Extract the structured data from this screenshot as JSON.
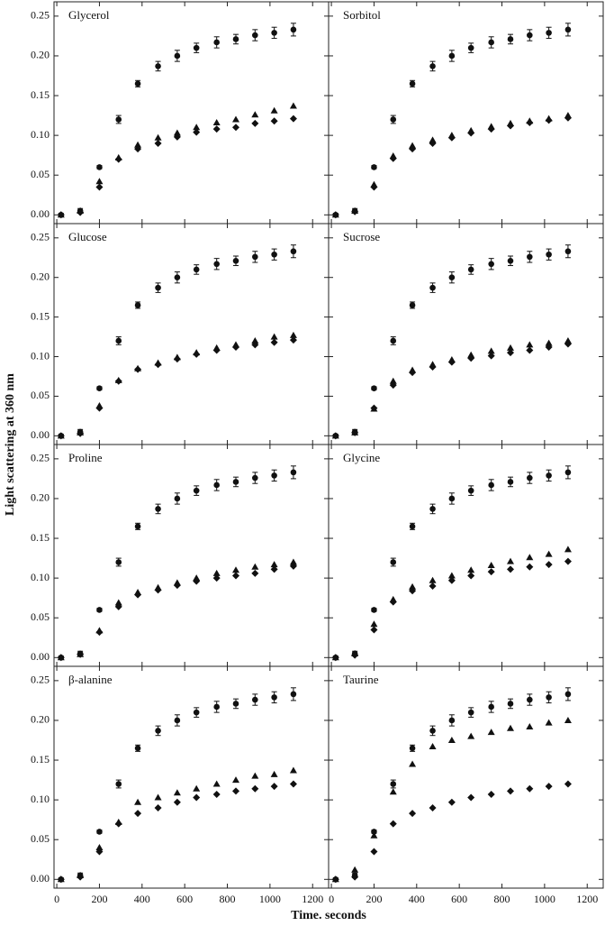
{
  "ylabel": "Light scattering at 360 nm",
  "xlabel": "Time. seconds",
  "chart_data": [
    {
      "type": "scatter",
      "title": "Glycerol",
      "ytick_labels": true,
      "xtick_labels": false,
      "x": [
        20,
        110,
        200,
        290,
        380,
        475,
        565,
        655,
        750,
        840,
        930,
        1020,
        1110
      ],
      "series": [
        {
          "marker": "circle",
          "color": "#111111",
          "values": [
            0,
            0.005,
            0.06,
            0.12,
            0.165,
            0.187,
            0.2,
            0.21,
            0.217,
            0.221,
            0.226,
            0.229,
            0.233
          ],
          "errors": [
            0.002,
            0.003,
            0.002,
            0.005,
            0.004,
            0.006,
            0.007,
            0.006,
            0.007,
            0.006,
            0.007,
            0.007,
            0.008
          ]
        },
        {
          "marker": "triangle",
          "color": "#111111",
          "values": [
            0,
            0.005,
            0.042,
            0.072,
            0.088,
            0.097,
            0.103,
            0.11,
            0.116,
            0.12,
            0.126,
            0.131,
            0.137
          ]
        },
        {
          "marker": "diamond",
          "color": "#111111",
          "values": [
            0,
            0.003,
            0.035,
            0.07,
            0.083,
            0.09,
            0.098,
            0.104,
            0.108,
            0.11,
            0.115,
            0.118,
            0.121
          ]
        }
      ],
      "xlim": [
        -13,
        1275
      ],
      "ylim": [
        -0.011,
        0.268
      ],
      "xticks": [
        0,
        200,
        400,
        600,
        800,
        1000,
        1200
      ],
      "yticks": [
        {
          "value": 0,
          "label": "0.00"
        },
        0.05,
        {
          "value": 0.1,
          "label": "0.10"
        },
        0.15,
        {
          "value": 0.2,
          "label": "0.20"
        },
        0.25
      ]
    },
    {
      "type": "scatter",
      "title": "Sorbitol",
      "ytick_labels": false,
      "xtick_labels": false,
      "x": [
        20,
        110,
        200,
        290,
        380,
        475,
        565,
        655,
        750,
        840,
        930,
        1020,
        1110
      ],
      "series": [
        {
          "marker": "circle",
          "color": "#111111",
          "values": [
            0,
            0.005,
            0.06,
            0.12,
            0.165,
            0.187,
            0.2,
            0.21,
            0.217,
            0.221,
            0.226,
            0.229,
            0.233
          ],
          "errors": [
            0.002,
            0.003,
            0.002,
            0.005,
            0.004,
            0.006,
            0.007,
            0.006,
            0.007,
            0.006,
            0.007,
            0.007,
            0.008
          ]
        },
        {
          "marker": "triangle",
          "color": "#111111",
          "values": [
            0,
            0.005,
            0.038,
            0.074,
            0.087,
            0.094,
            0.1,
            0.106,
            0.111,
            0.115,
            0.118,
            0.121,
            0.125
          ]
        },
        {
          "marker": "diamond",
          "color": "#111111",
          "values": [
            0,
            0.004,
            0.035,
            0.071,
            0.083,
            0.09,
            0.097,
            0.103,
            0.108,
            0.112,
            0.116,
            0.119,
            0.122
          ]
        }
      ],
      "xlim": [
        -13,
        1275
      ],
      "ylim": [
        -0.011,
        0.268
      ],
      "xticks": [
        0,
        200,
        400,
        600,
        800,
        1000,
        1200
      ],
      "yticks": [
        0,
        0.05,
        0.1,
        0.15,
        0.2,
        0.25
      ]
    },
    {
      "type": "scatter",
      "title": "Glucose",
      "ytick_labels": true,
      "xtick_labels": false,
      "x": [
        20,
        110,
        200,
        290,
        380,
        475,
        565,
        655,
        750,
        840,
        930,
        1020,
        1110
      ],
      "series": [
        {
          "marker": "circle",
          "color": "#111111",
          "values": [
            0,
            0.005,
            0.06,
            0.12,
            0.165,
            0.187,
            0.2,
            0.21,
            0.217,
            0.221,
            0.226,
            0.229,
            0.233
          ],
          "errors": [
            0.002,
            0.003,
            0.002,
            0.005,
            0.004,
            0.006,
            0.007,
            0.006,
            0.007,
            0.006,
            0.007,
            0.007,
            0.008
          ]
        },
        {
          "marker": "triangle",
          "color": "#111111",
          "values": [
            0,
            0.004,
            0.038,
            0.07,
            0.085,
            0.092,
            0.099,
            0.105,
            0.111,
            0.115,
            0.12,
            0.125,
            0.127
          ]
        },
        {
          "marker": "diamond",
          "color": "#111111",
          "values": [
            0,
            0.003,
            0.035,
            0.069,
            0.084,
            0.09,
            0.097,
            0.103,
            0.108,
            0.112,
            0.115,
            0.118,
            0.121
          ]
        }
      ],
      "xlim": [
        -13,
        1275
      ],
      "ylim": [
        -0.011,
        0.268
      ],
      "xticks": [
        0,
        200,
        400,
        600,
        800,
        1000,
        1200
      ],
      "yticks": [
        {
          "value": 0,
          "label": "0.00"
        },
        0.05,
        {
          "value": 0.1,
          "label": "0.10"
        },
        0.15,
        {
          "value": 0.2,
          "label": "0.20"
        },
        0.25
      ]
    },
    {
      "type": "scatter",
      "title": "Sucrose",
      "ytick_labels": false,
      "xtick_labels": false,
      "x": [
        20,
        110,
        200,
        290,
        380,
        475,
        565,
        655,
        750,
        840,
        930,
        1020,
        1110
      ],
      "series": [
        {
          "marker": "circle",
          "color": "#111111",
          "values": [
            0,
            0.005,
            0.06,
            0.12,
            0.165,
            0.187,
            0.2,
            0.21,
            0.217,
            0.221,
            0.226,
            0.229,
            0.233
          ],
          "errors": [
            0.002,
            0.003,
            0.002,
            0.005,
            0.004,
            0.006,
            0.007,
            0.006,
            0.007,
            0.006,
            0.007,
            0.007,
            0.008
          ]
        },
        {
          "marker": "triangle",
          "color": "#111111",
          "values": [
            0,
            0.004,
            0.034,
            0.069,
            0.083,
            0.09,
            0.096,
            0.102,
            0.107,
            0.111,
            0.115,
            0.117,
            0.12
          ]
        },
        {
          "marker": "diamond",
          "color": "#111111",
          "values": [
            0,
            0.004,
            0.035,
            0.064,
            0.08,
            0.087,
            0.093,
            0.098,
            0.101,
            0.105,
            0.108,
            0.112,
            0.116
          ]
        }
      ],
      "xlim": [
        -13,
        1275
      ],
      "ylim": [
        -0.011,
        0.268
      ],
      "xticks": [
        0,
        200,
        400,
        600,
        800,
        1000,
        1200
      ],
      "yticks": [
        0,
        0.05,
        0.1,
        0.15,
        0.2,
        0.25
      ]
    },
    {
      "type": "scatter",
      "title": "Proline",
      "ytick_labels": true,
      "xtick_labels": false,
      "x": [
        20,
        110,
        200,
        290,
        380,
        475,
        565,
        655,
        750,
        840,
        930,
        1020,
        1110
      ],
      "series": [
        {
          "marker": "circle",
          "color": "#111111",
          "values": [
            0,
            0.005,
            0.06,
            0.12,
            0.165,
            0.187,
            0.2,
            0.21,
            0.217,
            0.221,
            0.226,
            0.229,
            0.233
          ],
          "errors": [
            0.002,
            0.003,
            0.002,
            0.005,
            0.004,
            0.006,
            0.007,
            0.006,
            0.007,
            0.006,
            0.007,
            0.007,
            0.008
          ]
        },
        {
          "marker": "triangle",
          "color": "#111111",
          "values": [
            0,
            0.004,
            0.034,
            0.069,
            0.082,
            0.088,
            0.094,
            0.1,
            0.106,
            0.11,
            0.114,
            0.117,
            0.12
          ]
        },
        {
          "marker": "diamond",
          "color": "#111111",
          "values": [
            0,
            0.004,
            0.032,
            0.064,
            0.079,
            0.085,
            0.091,
            0.096,
            0.1,
            0.103,
            0.106,
            0.111,
            0.115
          ]
        }
      ],
      "xlim": [
        -13,
        1275
      ],
      "ylim": [
        -0.011,
        0.268
      ],
      "xticks": [
        0,
        200,
        400,
        600,
        800,
        1000,
        1200
      ],
      "yticks": [
        {
          "value": 0,
          "label": "0.00"
        },
        0.05,
        {
          "value": 0.1,
          "label": "0.10"
        },
        0.15,
        {
          "value": 0.2,
          "label": "0.20"
        },
        0.25
      ]
    },
    {
      "type": "scatter",
      "title": "Glycine",
      "ytick_labels": false,
      "xtick_labels": false,
      "x": [
        20,
        110,
        200,
        290,
        380,
        475,
        565,
        655,
        750,
        840,
        930,
        1020,
        1110
      ],
      "series": [
        {
          "marker": "circle",
          "color": "#111111",
          "values": [
            0,
            0.005,
            0.06,
            0.12,
            0.165,
            0.187,
            0.2,
            0.21,
            0.217,
            0.221,
            0.226,
            0.229,
            0.233
          ],
          "errors": [
            0.002,
            0.003,
            0.002,
            0.005,
            0.004,
            0.006,
            0.007,
            0.006,
            0.007,
            0.006,
            0.007,
            0.007,
            0.008
          ]
        },
        {
          "marker": "triangle",
          "color": "#111111",
          "values": [
            0,
            0.005,
            0.042,
            0.073,
            0.089,
            0.097,
            0.103,
            0.11,
            0.116,
            0.121,
            0.126,
            0.13,
            0.136
          ]
        },
        {
          "marker": "diamond",
          "color": "#111111",
          "values": [
            0,
            0.003,
            0.035,
            0.07,
            0.084,
            0.09,
            0.097,
            0.103,
            0.108,
            0.111,
            0.114,
            0.117,
            0.121
          ]
        }
      ],
      "xlim": [
        -13,
        1275
      ],
      "ylim": [
        -0.011,
        0.268
      ],
      "xticks": [
        0,
        200,
        400,
        600,
        800,
        1000,
        1200
      ],
      "yticks": [
        0,
        0.05,
        0.1,
        0.15,
        0.2,
        0.25
      ]
    },
    {
      "type": "scatter",
      "title": "β-alanine",
      "ytick_labels": true,
      "xtick_labels": true,
      "x": [
        20,
        110,
        200,
        290,
        380,
        475,
        565,
        655,
        750,
        840,
        930,
        1020,
        1110
      ],
      "series": [
        {
          "marker": "circle",
          "color": "#111111",
          "values": [
            0,
            0.005,
            0.06,
            0.12,
            0.165,
            0.187,
            0.2,
            0.21,
            0.217,
            0.221,
            0.226,
            0.229,
            0.233
          ],
          "errors": [
            0.002,
            0.003,
            0.002,
            0.005,
            0.004,
            0.006,
            0.007,
            0.006,
            0.007,
            0.006,
            0.007,
            0.007,
            0.008
          ]
        },
        {
          "marker": "triangle",
          "color": "#111111",
          "values": [
            0,
            0.005,
            0.04,
            0.072,
            0.097,
            0.103,
            0.109,
            0.114,
            0.12,
            0.125,
            0.13,
            0.132,
            0.137
          ]
        },
        {
          "marker": "diamond",
          "color": "#111111",
          "values": [
            0,
            0.003,
            0.035,
            0.07,
            0.083,
            0.09,
            0.097,
            0.103,
            0.107,
            0.111,
            0.114,
            0.117,
            0.12
          ]
        }
      ],
      "xlim": [
        -13,
        1275
      ],
      "ylim": [
        -0.011,
        0.268
      ],
      "xticks": [
        0,
        200,
        400,
        600,
        800,
        1000,
        1200
      ],
      "yticks": [
        {
          "value": 0,
          "label": "0.00"
        },
        0.05,
        {
          "value": 0.1,
          "label": "0.10"
        },
        0.15,
        {
          "value": 0.2,
          "label": "0.20"
        },
        0.25
      ]
    },
    {
      "type": "scatter",
      "title": "Taurine",
      "ytick_labels": false,
      "xtick_labels": true,
      "x": [
        20,
        110,
        200,
        290,
        380,
        475,
        565,
        655,
        750,
        840,
        930,
        1020,
        1110
      ],
      "series": [
        {
          "marker": "circle",
          "color": "#111111",
          "values": [
            0,
            0.005,
            0.06,
            0.12,
            0.165,
            0.187,
            0.2,
            0.21,
            0.217,
            0.221,
            0.226,
            0.229,
            0.233
          ],
          "errors": [
            0.002,
            0.003,
            0.002,
            0.005,
            0.004,
            0.006,
            0.007,
            0.006,
            0.007,
            0.006,
            0.007,
            0.007,
            0.008
          ]
        },
        {
          "marker": "triangle",
          "color": "#111111",
          "values": [
            0,
            0.012,
            0.055,
            0.11,
            0.145,
            0.167,
            0.175,
            0.18,
            0.185,
            0.19,
            0.192,
            0.197,
            0.2
          ]
        },
        {
          "marker": "diamond",
          "color": "#111111",
          "values": [
            0,
            0.003,
            0.035,
            0.07,
            0.083,
            0.09,
            0.097,
            0.103,
            0.107,
            0.111,
            0.114,
            0.117,
            0.12
          ]
        }
      ],
      "xlim": [
        -13,
        1275
      ],
      "ylim": [
        -0.011,
        0.268
      ],
      "xticks": [
        0,
        200,
        400,
        600,
        800,
        1000,
        1200
      ],
      "yticks": [
        0,
        0.05,
        0.1,
        0.15,
        0.2,
        0.25
      ]
    }
  ]
}
